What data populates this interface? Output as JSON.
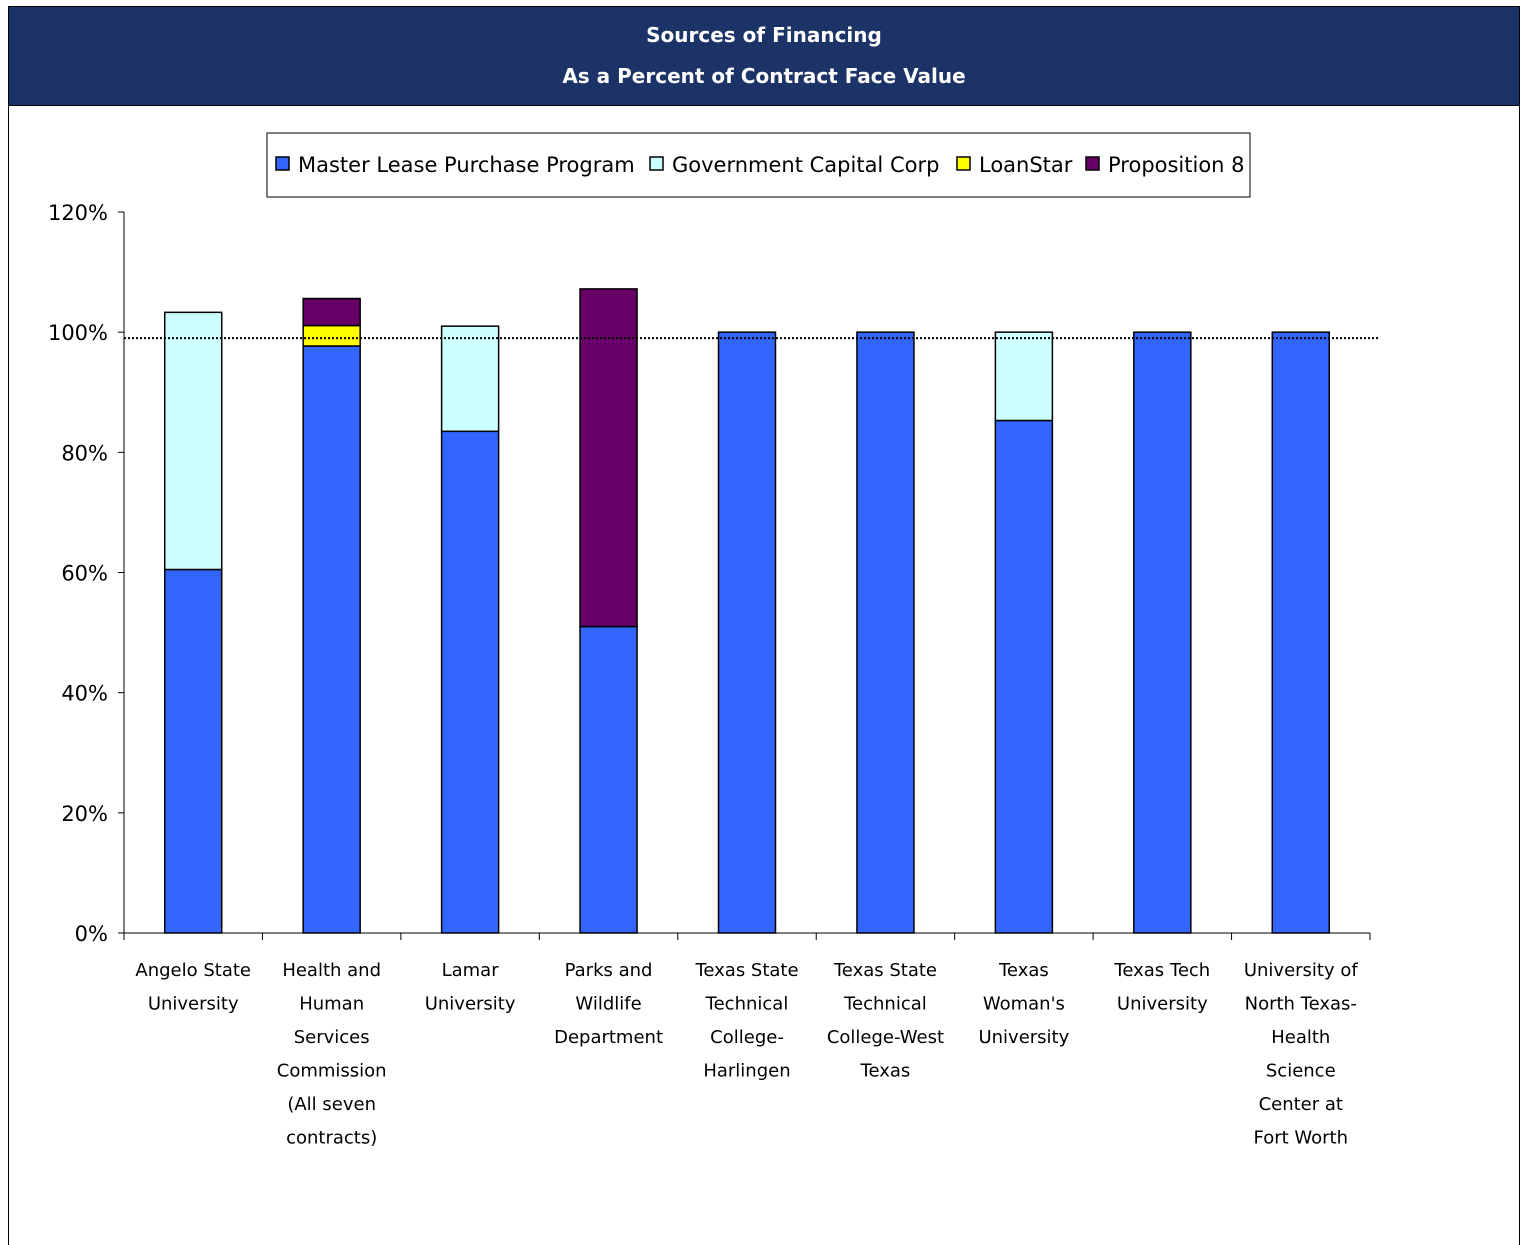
{
  "header": {
    "title_line1": "Sources of Financing",
    "title_line2": "As a Percent of Contract Face Value"
  },
  "chart_data": {
    "type": "bar",
    "stacked": true,
    "title": "Sources of Financing",
    "subtitle": "As a Percent of Contract Face Value",
    "xlabel": "",
    "ylabel": "",
    "ylim": [
      0,
      120
    ],
    "yticks": [
      "0%",
      "20%",
      "40%",
      "60%",
      "80%",
      "100%",
      "120%"
    ],
    "legend_position": "top",
    "reference_line": {
      "value": 99,
      "style": "dotted"
    },
    "categories": [
      [
        "Angelo State",
        "University"
      ],
      [
        "Health and",
        "Human",
        "Services",
        "Commission",
        "(All seven",
        "contracts)"
      ],
      [
        "Lamar",
        "University"
      ],
      [
        "Parks and",
        "Wildlife",
        "Department"
      ],
      [
        "Texas State",
        "Technical",
        "College-",
        "Harlingen"
      ],
      [
        "Texas State",
        "Technical",
        "College-West",
        "Texas"
      ],
      [
        "Texas",
        "Woman's",
        "University"
      ],
      [
        "Texas Tech",
        "University"
      ],
      [
        "University of",
        "North Texas-",
        "Health",
        "Science",
        "Center at",
        "Fort Worth"
      ]
    ],
    "series": [
      {
        "name": "Master Lease Purchase Program",
        "color": "#3366ff",
        "values": [
          60.5,
          97.7,
          83.5,
          51,
          100,
          100,
          85.3,
          100,
          100
        ]
      },
      {
        "name": "Government Capital Corp",
        "color": "#ccffff",
        "values": [
          42.8,
          0,
          17.5,
          0,
          0,
          0,
          14.7,
          0,
          0
        ]
      },
      {
        "name": "LoanStar",
        "color": "#ffff00",
        "values": [
          0,
          3.4,
          0,
          0,
          0,
          0,
          0,
          0,
          0
        ]
      },
      {
        "name": "Proposition 8",
        "color": "#660066",
        "values": [
          0,
          4.5,
          0,
          56.2,
          0,
          0,
          0,
          0,
          0
        ]
      }
    ]
  }
}
